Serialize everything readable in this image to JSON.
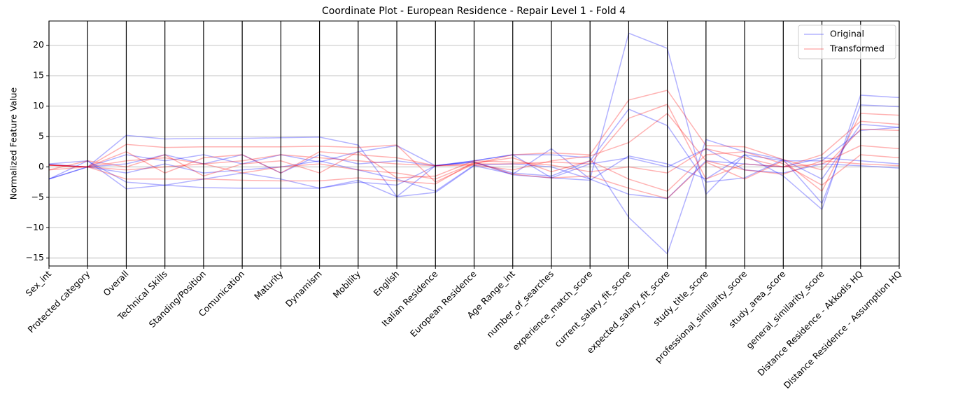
{
  "chart_data": {
    "type": "parallel",
    "title": "Coordinate Plot - European Residence - Repair Level 1 - Fold 4",
    "y_label": "Normalized Feature Value",
    "categories": [
      "Sex_int",
      "Protected category",
      "Overall",
      "Technical Skills",
      "Standing/Position",
      "Comunication",
      "Maturity",
      "Dynamism",
      "Mobility",
      "English",
      "Italian Residence",
      "European Residence",
      "Age Range_int",
      "number_of_searches",
      "experience_match_score",
      "current_salary_fit_score",
      "expected_salary_fit_score",
      "study_title_score",
      "professional_similarity_score",
      "study_area_score",
      "general_similarity_score",
      "Distance Residence - Akkodis HQ",
      "Distance Residence - Assumption HQ"
    ],
    "ylim": [
      -16.3,
      24
    ],
    "yticks": [
      {
        "value": -15,
        "label": "−15"
      },
      {
        "value": -10,
        "label": "−10"
      },
      {
        "value": -5,
        "label": "−5"
      },
      0,
      5,
      10,
      15,
      20
    ],
    "grid": true,
    "legend": "upper right",
    "alpha": 0.3,
    "series": [
      {
        "name": "Original",
        "color": "#0000ff",
        "values": [
          [
            -2,
            0,
            5.2,
            4.6,
            4.7,
            4.7,
            4.8,
            4.9,
            3.6,
            -4.9,
            -4.2,
            0.2,
            -1.2,
            3,
            -2,
            22,
            19.5,
            -4.5,
            2,
            -1.5,
            -7,
            11.8,
            11.4
          ],
          [
            0.5,
            1,
            -3.6,
            -3,
            -3.4,
            -3.5,
            -3.5,
            -3.5,
            -2.2,
            -4.9,
            0.2,
            1,
            2,
            2,
            1.5,
            -8.3,
            -14.3,
            4.5,
            2.5,
            1.2,
            -6,
            10.2,
            9.9
          ],
          [
            0.4,
            0,
            2,
            1,
            2,
            0.5,
            2,
            0.8,
            2.5,
            3.5,
            0.2,
            0.8,
            -1,
            -1.5,
            1,
            9.5,
            6.8,
            -2.5,
            -1.8,
            1.2,
            -2,
            7,
            6.5
          ],
          [
            -2,
            0,
            -1,
            0.5,
            -1,
            -0.5,
            0,
            1,
            -0.5,
            -2,
            -4,
            0.3,
            0.5,
            0,
            -2,
            -4.5,
            -5.2,
            1,
            0.5,
            0,
            1.5,
            1,
            0.5
          ],
          [
            0.4,
            0,
            0.5,
            2,
            0.5,
            2,
            -1,
            2,
            0.5,
            1,
            0.2,
            1,
            2,
            -1.8,
            0.5,
            1.5,
            0,
            3,
            -0.5,
            -1,
            0.5,
            0.2,
            -0.2
          ],
          [
            -2,
            1,
            -2.5,
            -3,
            -2,
            -1,
            -2,
            -3.5,
            -2.5,
            -3,
            0.2,
            0.8,
            -1.3,
            -1.8,
            -2.2,
            1.8,
            0.5,
            -2,
            2,
            1,
            1,
            6,
            6.5
          ]
        ]
      },
      {
        "name": "Transformed",
        "color": "#ff0000",
        "values": [
          [
            0.3,
            0,
            3.7,
            3.2,
            3.3,
            3.3,
            3.3,
            3.4,
            3.2,
            3.6,
            -2.5,
            0.5,
            2,
            2.3,
            2,
            11,
            12.6,
            3.5,
            3.3,
            1.2,
            -0.5,
            6.2,
            6
          ],
          [
            -0.5,
            0,
            -2,
            -2,
            -2,
            -2.2,
            -2.3,
            -2.3,
            -1.8,
            -2.3,
            -2.8,
            0.8,
            -1.2,
            -1.8,
            -1.5,
            -3.5,
            -5.2,
            0.8,
            -2,
            1,
            -4,
            8.8,
            8.5
          ],
          [
            0.3,
            0,
            1,
            1.5,
            0.5,
            1,
            2,
            1.5,
            1,
            0.5,
            0.2,
            0.5,
            0.5,
            0.8,
            0.5,
            8,
            10.3,
            -2,
            0.5,
            0,
            2,
            7.5,
            7
          ],
          [
            0.3,
            0,
            -0.5,
            0,
            0.5,
            -1,
            0,
            0.5,
            -0.5,
            -1,
            -2,
            0.6,
            1.5,
            -0.8,
            1,
            -2,
            -4,
            2,
            2.5,
            0.5,
            -3,
            2,
            1.5
          ],
          [
            0.3,
            0,
            2.5,
            -1,
            1.5,
            2,
            -1,
            2.5,
            2,
            1.5,
            0.2,
            0.3,
            -0.5,
            1,
            1.8,
            4,
            8.8,
            1,
            -0.5,
            -1.2,
            1,
            0.5,
            0.2
          ],
          [
            -0.5,
            1,
            0,
            2,
            -1.5,
            0.5,
            1,
            -1,
            2.5,
            -1.8,
            -1.5,
            1,
            0.8,
            0.3,
            -0.8,
            0,
            -1,
            3,
            1.5,
            0,
            0.5,
            3.5,
            3
          ]
        ]
      }
    ]
  }
}
